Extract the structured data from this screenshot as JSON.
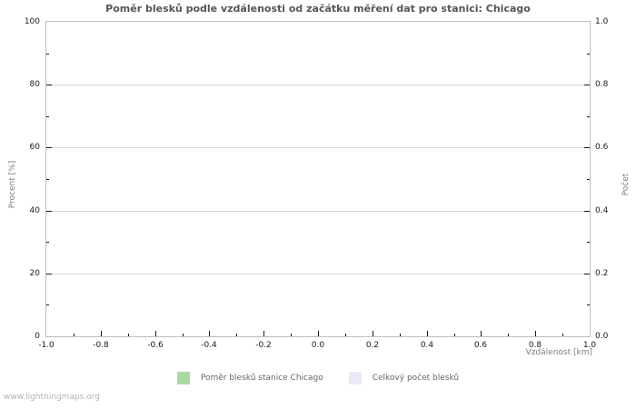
{
  "chart_data": {
    "type": "bar",
    "title": "Poměr blesků podle vzdálenosti od začátku měření dat pro stanici: Chicago",
    "xlabel": "Vzdálenost  [km]",
    "ylabel": "Procent  [%]",
    "y2label": "Počet",
    "xlim": [
      -1.0,
      1.0
    ],
    "ylim": [
      0,
      100
    ],
    "y2lim": [
      0.0,
      1.0
    ],
    "x_major_step": 0.2,
    "x_minor_step": 0.1,
    "y_major_step": 20,
    "y_minor_step": 10,
    "y2_major_step": 0.2,
    "y2_minor_step": 0.1,
    "x_tick_labels": [
      "-1.0",
      "-0.8",
      "-0.6",
      "-0.4",
      "-0.2",
      "0.0",
      "0.2",
      "0.4",
      "0.6",
      "0.8",
      "1.0"
    ],
    "y_tick_labels": [
      "0",
      "20",
      "40",
      "60",
      "80",
      "100"
    ],
    "y2_tick_labels": [
      "0.0",
      "0.2",
      "0.4",
      "0.6",
      "0.8",
      "1.0"
    ],
    "grid": "horizontal-major-only",
    "legend_position": "bottom-center",
    "x": [],
    "series": [
      {
        "name": "Poměr blesků stanice Chicago",
        "color": "#a9d9a1",
        "axis": "left",
        "values": []
      },
      {
        "name": "Celkový počet blesků",
        "color": "#e9e9f8",
        "axis": "right",
        "values": []
      }
    ]
  },
  "colors": {
    "background": "#ffffff",
    "title_text": "#555555",
    "tick_text": "#1a1a1a",
    "axis_title_text": "#808080",
    "legend_text": "#666666",
    "plot_border": "#bdbdbd",
    "gridline": "#d6d6d6",
    "tick_mark": "#1a1a1a",
    "series_ratio_green": "#a9d9a1",
    "series_total_lavender": "#e9e9f8",
    "watermark_text": "#b3b3b3"
  },
  "footer": {
    "watermark": "www.lightningmaps.org"
  }
}
